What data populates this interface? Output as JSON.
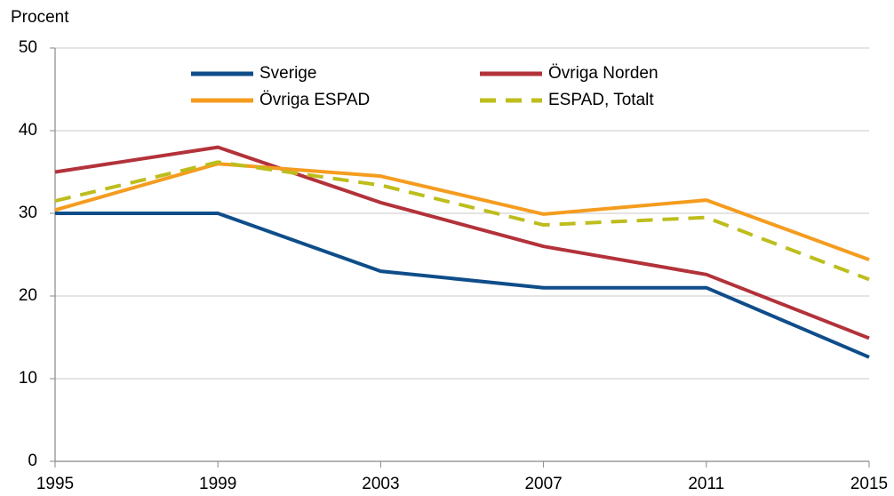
{
  "chart_data": {
    "type": "line",
    "y_label": "Procent",
    "x": [
      1995,
      1999,
      2003,
      2007,
      2011,
      2015
    ],
    "xlim": [
      1995,
      2015
    ],
    "xticks": [
      1995,
      1999,
      2003,
      2007,
      2011,
      2015
    ],
    "ylim": [
      0,
      50
    ],
    "yticks": [
      0,
      10,
      20,
      30,
      40,
      50
    ],
    "grid": true,
    "series": [
      {
        "name": "Sverige",
        "color": "#0f4d8a",
        "dashed": false,
        "values": [
          30,
          30,
          23,
          21,
          21,
          12.6
        ]
      },
      {
        "name": "Övriga Norden",
        "color": "#b3323a",
        "dashed": false,
        "values": [
          35,
          38,
          31.3,
          26,
          22.6,
          14.9
        ]
      },
      {
        "name": "Övriga ESPAD",
        "color": "#f59c1f",
        "dashed": false,
        "values": [
          30.4,
          36,
          34.5,
          29.9,
          31.6,
          24.4
        ]
      },
      {
        "name": "ESPAD, Totalt",
        "color": "#bdbd1c",
        "dashed": true,
        "values": [
          31.5,
          36.2,
          33.4,
          28.6,
          29.5,
          22
        ]
      }
    ]
  }
}
